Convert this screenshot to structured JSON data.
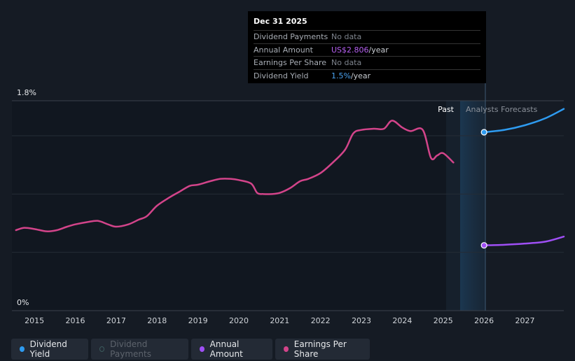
{
  "tooltip": {
    "date": "Dec 31 2025",
    "rows": [
      {
        "label": "Dividend Payments",
        "value": "No data"
      },
      {
        "label": "Annual Amount",
        "value": "US$2.806",
        "unit": "/year"
      },
      {
        "label": "Earnings Per Share",
        "value": "No data"
      },
      {
        "label": "Dividend Yield",
        "value": "1.5%",
        "unit": "/year"
      }
    ]
  },
  "legend": [
    {
      "label": "Dividend Yield",
      "color": "#2e9bf0",
      "active": true
    },
    {
      "label": "Dividend Payments",
      "color": "#2a3a40",
      "active": false
    },
    {
      "label": "Annual Amount",
      "color": "#9f4ff5",
      "active": true
    },
    {
      "label": "Earnings Per Share",
      "color": "#d3448a",
      "active": true
    }
  ],
  "chart_data": {
    "type": "line",
    "y_top_label": "1.8%",
    "y_bottom_label": "0%",
    "ylim": [
      0,
      1.8
    ],
    "xlim": [
      2014.45,
      2027.95
    ],
    "x_ticks": [
      "2015",
      "2016",
      "2017",
      "2018",
      "2019",
      "2020",
      "2021",
      "2022",
      "2023",
      "2024",
      "2025",
      "2026",
      "2027"
    ],
    "past_label": "Past",
    "forecast_label": "Analysts Forecasts",
    "forecast_start": 2025.35,
    "today": 2026.0,
    "series": [
      {
        "name": "Earnings Per Share",
        "color": "#d3448a",
        "x": [
          2014.55,
          2014.75,
          2015.0,
          2015.3,
          2015.55,
          2015.8,
          2016.0,
          2016.3,
          2016.55,
          2016.8,
          2017.0,
          2017.3,
          2017.55,
          2017.75,
          2018.0,
          2018.3,
          2018.55,
          2018.8,
          2019.0,
          2019.3,
          2019.55,
          2019.8,
          2020.0,
          2020.3,
          2020.45,
          2020.6,
          2020.8,
          2021.0,
          2021.25,
          2021.5,
          2021.7,
          2022.0,
          2022.3,
          2022.6,
          2022.8,
          2023.0,
          2023.3,
          2023.55,
          2023.75,
          2024.0,
          2024.2,
          2024.5,
          2024.7,
          2024.85,
          2025.0,
          2025.25
        ],
        "values": [
          0.69,
          0.71,
          0.7,
          0.68,
          0.69,
          0.72,
          0.74,
          0.76,
          0.77,
          0.74,
          0.72,
          0.74,
          0.78,
          0.81,
          0.9,
          0.97,
          1.02,
          1.07,
          1.08,
          1.11,
          1.13,
          1.13,
          1.12,
          1.09,
          1.01,
          1.0,
          1.0,
          1.01,
          1.05,
          1.11,
          1.13,
          1.18,
          1.27,
          1.38,
          1.52,
          1.55,
          1.56,
          1.56,
          1.63,
          1.57,
          1.54,
          1.55,
          1.31,
          1.33,
          1.35,
          1.27
        ]
      },
      {
        "name": "Dividend Yield",
        "color": "#2e9bf0",
        "x": [
          2026.0,
          2026.5,
          2027.0,
          2027.5,
          2027.95
        ],
        "values": [
          1.53,
          1.55,
          1.59,
          1.65,
          1.73
        ]
      },
      {
        "name": "Annual Amount",
        "color": "#9f4ff5",
        "x": [
          2026.0,
          2026.5,
          2027.0,
          2027.5,
          2027.95
        ],
        "values": [
          0.56,
          0.565,
          0.575,
          0.592,
          0.635
        ]
      }
    ]
  }
}
